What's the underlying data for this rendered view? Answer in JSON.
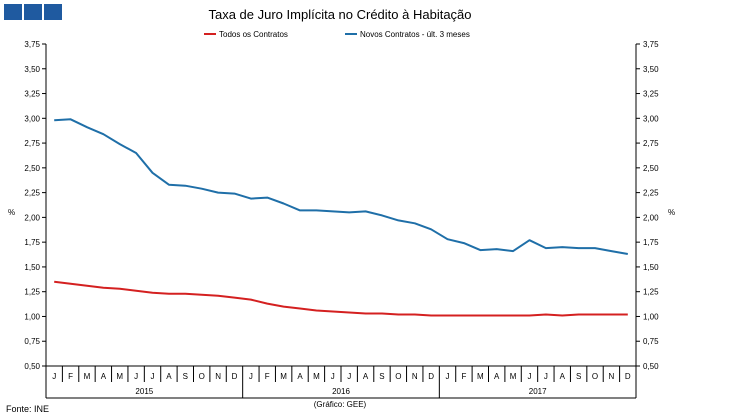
{
  "header": {
    "logo_icon": "three-blue-squares-logo"
  },
  "chart_data": {
    "type": "line",
    "title": "Taxa de Juro Implícita no Crédito à Habitação",
    "ylabel_left": "%",
    "ylabel_right": "%",
    "ylim": [
      0.5,
      3.75
    ],
    "yticks": [
      0.5,
      0.75,
      1.0,
      1.25,
      1.5,
      1.75,
      2.0,
      2.25,
      2.5,
      2.75,
      3.0,
      3.25,
      3.5,
      3.75
    ],
    "ytick_labels": [
      "0,50",
      "0,75",
      "1,00",
      "1,25",
      "1,50",
      "1,75",
      "2,00",
      "2,25",
      "2,50",
      "2,75",
      "3,00",
      "3,25",
      "3,50",
      "3,75"
    ],
    "grid": false,
    "legend_position": "top-center",
    "categories": [
      "J",
      "F",
      "M",
      "A",
      "M",
      "J",
      "J",
      "A",
      "S",
      "O",
      "N",
      "D",
      "J",
      "F",
      "M",
      "A",
      "M",
      "J",
      "J",
      "A",
      "S",
      "O",
      "N",
      "D",
      "J",
      "F",
      "M",
      "A",
      "M",
      "J",
      "J",
      "A",
      "S",
      "O",
      "N",
      "D"
    ],
    "years": [
      "2015",
      "2016",
      "2017"
    ],
    "series": [
      {
        "name": "Todos os Contratos",
        "color": "#d42020",
        "values": [
          1.35,
          1.33,
          1.31,
          1.29,
          1.28,
          1.26,
          1.24,
          1.23,
          1.23,
          1.22,
          1.21,
          1.19,
          1.17,
          1.13,
          1.1,
          1.08,
          1.06,
          1.05,
          1.04,
          1.03,
          1.03,
          1.02,
          1.02,
          1.01,
          1.01,
          1.01,
          1.01,
          1.01,
          1.01,
          1.01,
          1.02,
          1.01,
          1.02,
          1.02,
          1.02,
          1.02
        ]
      },
      {
        "name": "Novos Contratos - últ. 3 meses",
        "color": "#1f6fa8",
        "values": [
          2.98,
          2.99,
          2.91,
          2.84,
          2.74,
          2.65,
          2.45,
          2.33,
          2.32,
          2.29,
          2.25,
          2.24,
          2.19,
          2.2,
          2.14,
          2.07,
          2.07,
          2.06,
          2.05,
          2.06,
          2.02,
          1.97,
          1.94,
          1.88,
          1.78,
          1.74,
          1.67,
          1.68,
          1.66,
          1.77,
          1.69,
          1.7,
          1.69,
          1.69,
          1.66,
          1.63
        ]
      }
    ]
  },
  "footer": {
    "source": "Fonte: INE",
    "credit": "(Gráfico: GEE)"
  }
}
